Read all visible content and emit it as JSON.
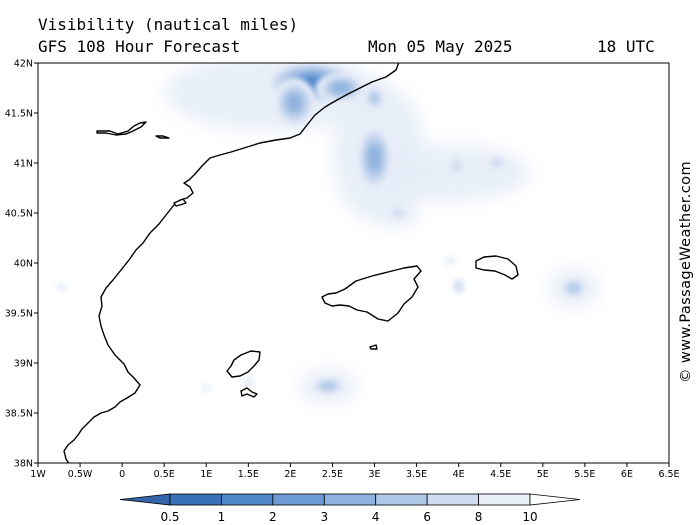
{
  "header": {
    "title": "Visibility (nautical miles)",
    "subtitle": "GFS 108 Hour Forecast",
    "date": "Mon 05 May 2025",
    "time": "18 UTC"
  },
  "credit": "© www.PassageWeather.com",
  "map": {
    "lon_range": [
      -1,
      6.5
    ],
    "lat_range": [
      38,
      42
    ],
    "x_ticks": [
      {
        "value": -1,
        "label": "1W"
      },
      {
        "value": -0.5,
        "label": "0.5W"
      },
      {
        "value": 0,
        "label": "0"
      },
      {
        "value": 0.5,
        "label": "0.5E"
      },
      {
        "value": 1,
        "label": "1E"
      },
      {
        "value": 1.5,
        "label": "1.5E"
      },
      {
        "value": 2,
        "label": "2E"
      },
      {
        "value": 2.5,
        "label": "2.5E"
      },
      {
        "value": 3,
        "label": "3E"
      },
      {
        "value": 3.5,
        "label": "3.5E"
      },
      {
        "value": 4,
        "label": "4E"
      },
      {
        "value": 4.5,
        "label": "4.5E"
      },
      {
        "value": 5,
        "label": "5E"
      },
      {
        "value": 5.5,
        "label": "5.5E"
      },
      {
        "value": 6,
        "label": "6E"
      },
      {
        "value": 6.5,
        "label": "6.5E"
      }
    ],
    "y_ticks": [
      {
        "value": 42,
        "label": "42N"
      },
      {
        "value": 41.5,
        "label": "41.5N"
      },
      {
        "value": 41,
        "label": "41N"
      },
      {
        "value": 40.5,
        "label": "40.5N"
      },
      {
        "value": 40,
        "label": "40N"
      },
      {
        "value": 39.5,
        "label": "39.5N"
      },
      {
        "value": 39,
        "label": "39N"
      },
      {
        "value": 38.5,
        "label": "38.5N"
      },
      {
        "value": 38,
        "label": "38N"
      }
    ],
    "fog_patches": [
      {
        "lon": 2.25,
        "lat": 41.8,
        "rlon": 0.55,
        "rlat": 0.22,
        "level": 6
      },
      {
        "lon": 2.05,
        "lat": 41.6,
        "rlon": 0.25,
        "rlat": 0.25,
        "level": 4
      },
      {
        "lon": 2.6,
        "lat": 41.75,
        "rlon": 0.3,
        "rlat": 0.15,
        "level": 4
      },
      {
        "lon": 3.0,
        "lat": 41.05,
        "rlon": 0.22,
        "rlat": 0.35,
        "level": 4
      },
      {
        "lon": 3.0,
        "lat": 41.65,
        "rlon": 0.12,
        "rlat": 0.12,
        "level": 3
      },
      {
        "lon": 3.28,
        "lat": 40.5,
        "rlon": 0.12,
        "rlat": 0.07,
        "level": 2
      },
      {
        "lon": 3.97,
        "lat": 40.97,
        "rlon": 0.1,
        "rlat": 0.1,
        "level": 2
      },
      {
        "lon": 4.45,
        "lat": 41.0,
        "rlon": 0.12,
        "rlat": 0.08,
        "level": 2
      },
      {
        "lon": 5.37,
        "lat": 39.75,
        "rlon": 0.16,
        "rlat": 0.1,
        "level": 3
      },
      {
        "lon": 2.45,
        "lat": 38.77,
        "rlon": 0.2,
        "rlat": 0.09,
        "level": 3
      },
      {
        "lon": 4.0,
        "lat": 39.77,
        "rlon": 0.07,
        "rlat": 0.08,
        "level": 2
      },
      {
        "lon": 3.9,
        "lat": 40.02,
        "rlon": 0.06,
        "rlat": 0.05,
        "level": 1
      },
      {
        "lon": -0.72,
        "lat": 39.76,
        "rlon": 0.06,
        "rlat": 0.05,
        "level": 1
      },
      {
        "lon": 1.0,
        "lat": 38.75,
        "rlon": 0.05,
        "rlat": 0.05,
        "level": 1
      },
      {
        "lon": 1.5,
        "lat": 38.8,
        "rlon": 0.07,
        "rlat": 0.06,
        "level": 1
      }
    ],
    "fog_haze": [
      {
        "lon": 1.8,
        "lat": 41.7,
        "rlon": 1.3,
        "rlat": 0.38
      },
      {
        "lon": 3.05,
        "lat": 41.1,
        "rlon": 0.55,
        "rlat": 0.7
      },
      {
        "lon": 3.9,
        "lat": 40.9,
        "rlon": 0.95,
        "rlat": 0.28
      },
      {
        "lon": 3.3,
        "lat": 40.5,
        "rlon": 0.22,
        "rlat": 0.14
      },
      {
        "lon": 5.37,
        "lat": 39.75,
        "rlon": 0.3,
        "rlat": 0.2
      },
      {
        "lon": 2.45,
        "lat": 38.77,
        "rlon": 0.35,
        "rlat": 0.17
      }
    ]
  },
  "colorbar": {
    "colors": [
      "#3a70b8",
      "#4f86c8",
      "#6d9bd3",
      "#8fb2de",
      "#b0c8e8",
      "#cfdcf1",
      "#e8eef8",
      "#ffffff"
    ],
    "labels": [
      "0.5",
      "1",
      "2",
      "3",
      "4",
      "6",
      "8",
      "10"
    ]
  }
}
